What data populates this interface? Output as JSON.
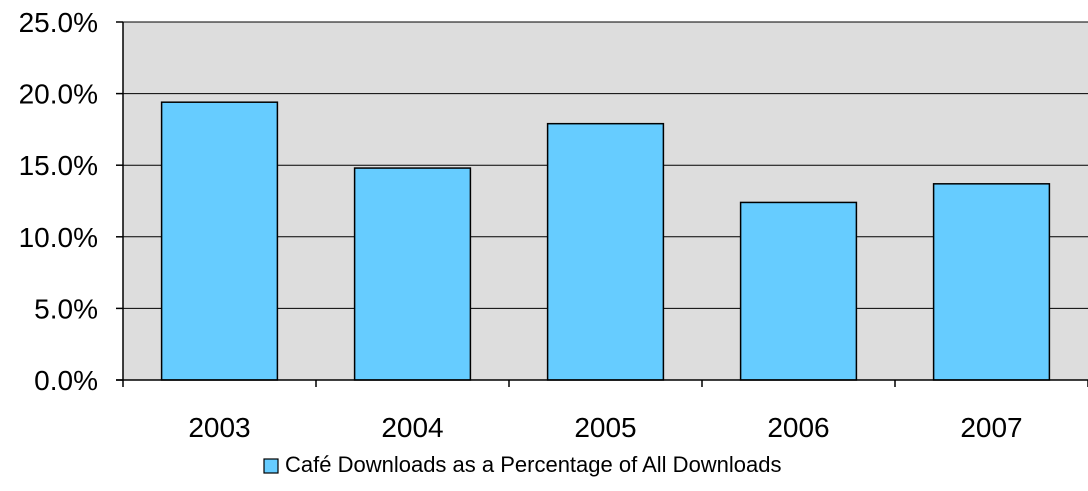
{
  "chart_data": {
    "type": "bar",
    "categories": [
      "2003",
      "2004",
      "2005",
      "2006",
      "2007"
    ],
    "series": [
      {
        "name": "Café Downloads as a Percentage of All Downloads",
        "values": [
          19.4,
          14.8,
          17.9,
          12.4,
          13.7
        ],
        "color": "#66ccff"
      }
    ],
    "ylim": [
      0,
      25
    ],
    "yticks": [
      0,
      5,
      10,
      15,
      20,
      25
    ],
    "ytick_labels": [
      "0.0%",
      "5.0%",
      "10.0%",
      "15.0%",
      "20.0%",
      "25.0%"
    ],
    "plot_background": "#dddddd",
    "grid": true,
    "legend_position": "bottom"
  }
}
